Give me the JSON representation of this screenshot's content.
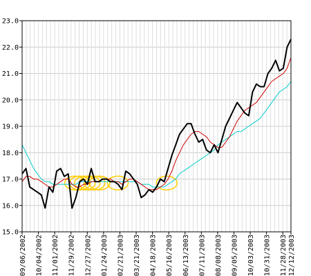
{
  "chart_data": {
    "type": "line",
    "ylim": [
      15.0,
      23.0
    ],
    "y_ticks": [
      15.0,
      16.0,
      17.0,
      18.0,
      19.0,
      20.0,
      21.0,
      22.0,
      23.0
    ],
    "y_tick_labels": [
      "15.0",
      "16.0",
      "17.0",
      "18.0",
      "19.0",
      "20.0",
      "21.0",
      "22.0",
      "23.0"
    ],
    "x_tick_labels": [
      "09/06/2002",
      "10/04/2002",
      "11/01/2002",
      "11/29/2002",
      "12/27/2002",
      "01/24/2003",
      "02/21/2003",
      "03/21/2003",
      "04/18/2003",
      "05/16/2003",
      "06/13/2003",
      "07/11/2003",
      "08/08/2003",
      "09/05/2003",
      "10/03/2003",
      "10/31/2003",
      "11/28/2003",
      "12/12/2003"
    ],
    "x_tick_weeks": [
      0,
      4,
      8,
      12,
      16,
      20,
      24,
      28,
      32,
      36,
      40,
      44,
      48,
      52,
      56,
      60,
      64,
      66
    ],
    "x_week_count": 66,
    "grid": true,
    "legend": "none",
    "series": [
      {
        "color": "#000000",
        "values": [
          17.2,
          17.4,
          16.7,
          16.6,
          16.5,
          16.4,
          15.9,
          16.7,
          16.5,
          17.3,
          17.4,
          17.1,
          17.2,
          15.9,
          16.3,
          16.9,
          17.0,
          16.8,
          17.4,
          16.9,
          16.9,
          17.0,
          17.0,
          16.9,
          16.9,
          16.8,
          16.6,
          17.3,
          17.2,
          17.0,
          16.8,
          16.3,
          16.4,
          16.6,
          16.5,
          16.7,
          17.0,
          16.9,
          17.4,
          17.9,
          18.3,
          18.7,
          18.9,
          19.1,
          19.1,
          18.7,
          18.4,
          18.5,
          18.1,
          18.0,
          18.3,
          18.0,
          18.5,
          19.0,
          19.3,
          19.6,
          19.9,
          19.7,
          19.5,
          19.4,
          20.3,
          20.6,
          20.5,
          20.5,
          21.0,
          21.2,
          21.5,
          21.1,
          21.2,
          22.0,
          22.3
        ],
        "stroke_width": 2
      },
      {
        "color": "#cc0000",
        "values": [
          16.9,
          17.1,
          17.1,
          17.0,
          17.0,
          16.9,
          16.8,
          16.7,
          16.7,
          16.8,
          16.9,
          17.0,
          17.0,
          16.8,
          16.7,
          16.7,
          16.8,
          16.8,
          16.9,
          16.9,
          16.9,
          17.0,
          17.0,
          17.0,
          16.9,
          16.9,
          16.8,
          16.9,
          17.0,
          17.0,
          16.9,
          16.8,
          16.7,
          16.6,
          16.6,
          16.6,
          16.7,
          16.8,
          17.0,
          17.3,
          17.7,
          18.0,
          18.3,
          18.5,
          18.7,
          18.8,
          18.8,
          18.7,
          18.6,
          18.4,
          18.3,
          18.2,
          18.2,
          18.4,
          18.6,
          18.9,
          19.2,
          19.4,
          19.6,
          19.7,
          19.8,
          19.9,
          20.1,
          20.3,
          20.5,
          20.7,
          20.8,
          20.9,
          21.0,
          21.2,
          21.6
        ],
        "stroke_width": 1
      },
      {
        "color": "#00cccc",
        "values": [
          18.3,
          18.0,
          17.7,
          17.4,
          17.2,
          17.0,
          16.9,
          16.9,
          16.8,
          16.8,
          16.8,
          16.8,
          16.8,
          16.8,
          16.8,
          16.9,
          16.9,
          16.9,
          16.9,
          16.9,
          16.9,
          16.9,
          16.9,
          16.9,
          16.9,
          16.9,
          16.9,
          16.9,
          16.9,
          16.9,
          16.9,
          16.8,
          16.8,
          16.8,
          16.7,
          16.7,
          16.7,
          16.7,
          16.8,
          16.9,
          17.0,
          17.2,
          17.3,
          17.4,
          17.5,
          17.6,
          17.7,
          17.8,
          17.9,
          18.0,
          18.1,
          18.3,
          18.4,
          18.5,
          18.6,
          18.7,
          18.8,
          18.8,
          18.9,
          19.0,
          19.1,
          19.2,
          19.3,
          19.5,
          19.7,
          19.9,
          20.1,
          20.3,
          20.4,
          20.5,
          20.7
        ],
        "stroke_width": 1
      }
    ],
    "annotations": {
      "type": "ellipse-markers",
      "color": "#ffcc00",
      "points": [
        {
          "week": 13.0,
          "y": 16.85
        },
        {
          "week": 14.2,
          "y": 16.85
        },
        {
          "week": 15.4,
          "y": 16.85
        },
        {
          "week": 16.6,
          "y": 16.85
        },
        {
          "week": 17.8,
          "y": 16.85
        },
        {
          "week": 19.0,
          "y": 16.85
        },
        {
          "week": 23.5,
          "y": 16.85
        },
        {
          "week": 35.5,
          "y": 16.85
        }
      ]
    }
  }
}
